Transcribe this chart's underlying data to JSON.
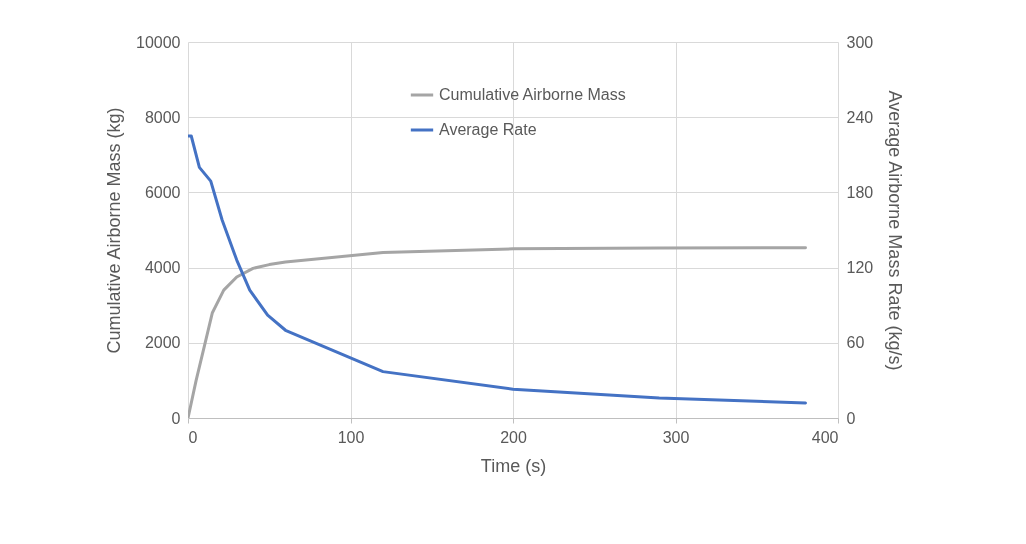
{
  "chart_data": {
    "type": "line",
    "xlabel": "Time (s)",
    "ylabel": "Cumulative Airborne Mass (kg)",
    "y2label": "Average Airborne Mass Rate (kg/s)",
    "series": [
      {
        "name": "Cumulative Airborne Mass",
        "color": "#a5a5a5",
        "x": [
          0,
          5,
          10,
          15,
          22,
          30,
          40,
          50,
          60,
          120,
          200,
          290,
          380
        ],
        "values": [
          0,
          1000,
          1900,
          2800,
          3400,
          3750,
          3980,
          4080,
          4150,
          4400,
          4500,
          4520,
          4530
        ]
      },
      {
        "name": "Average Rate",
        "color": "#4472c4",
        "axis": "y2",
        "x": [
          0,
          2,
          7,
          14,
          21,
          30,
          38,
          49,
          60,
          120,
          200,
          290,
          380
        ],
        "values": [
          225,
          225,
          200,
          189,
          158,
          126,
          102,
          82,
          70,
          37,
          23,
          16,
          12
        ]
      }
    ],
    "xlim": [
      0,
      400
    ],
    "xticks": [
      0,
      100,
      200,
      300,
      400
    ],
    "ylim": [
      0,
      10000
    ],
    "yticks": [
      0,
      2000,
      4000,
      6000,
      8000,
      10000
    ],
    "y2lim": [
      0,
      300
    ],
    "y2ticks": [
      0,
      60,
      120,
      180,
      240,
      300
    ],
    "grid": true,
    "legend": "top",
    "line_style": "solid",
    "marker": "none"
  }
}
